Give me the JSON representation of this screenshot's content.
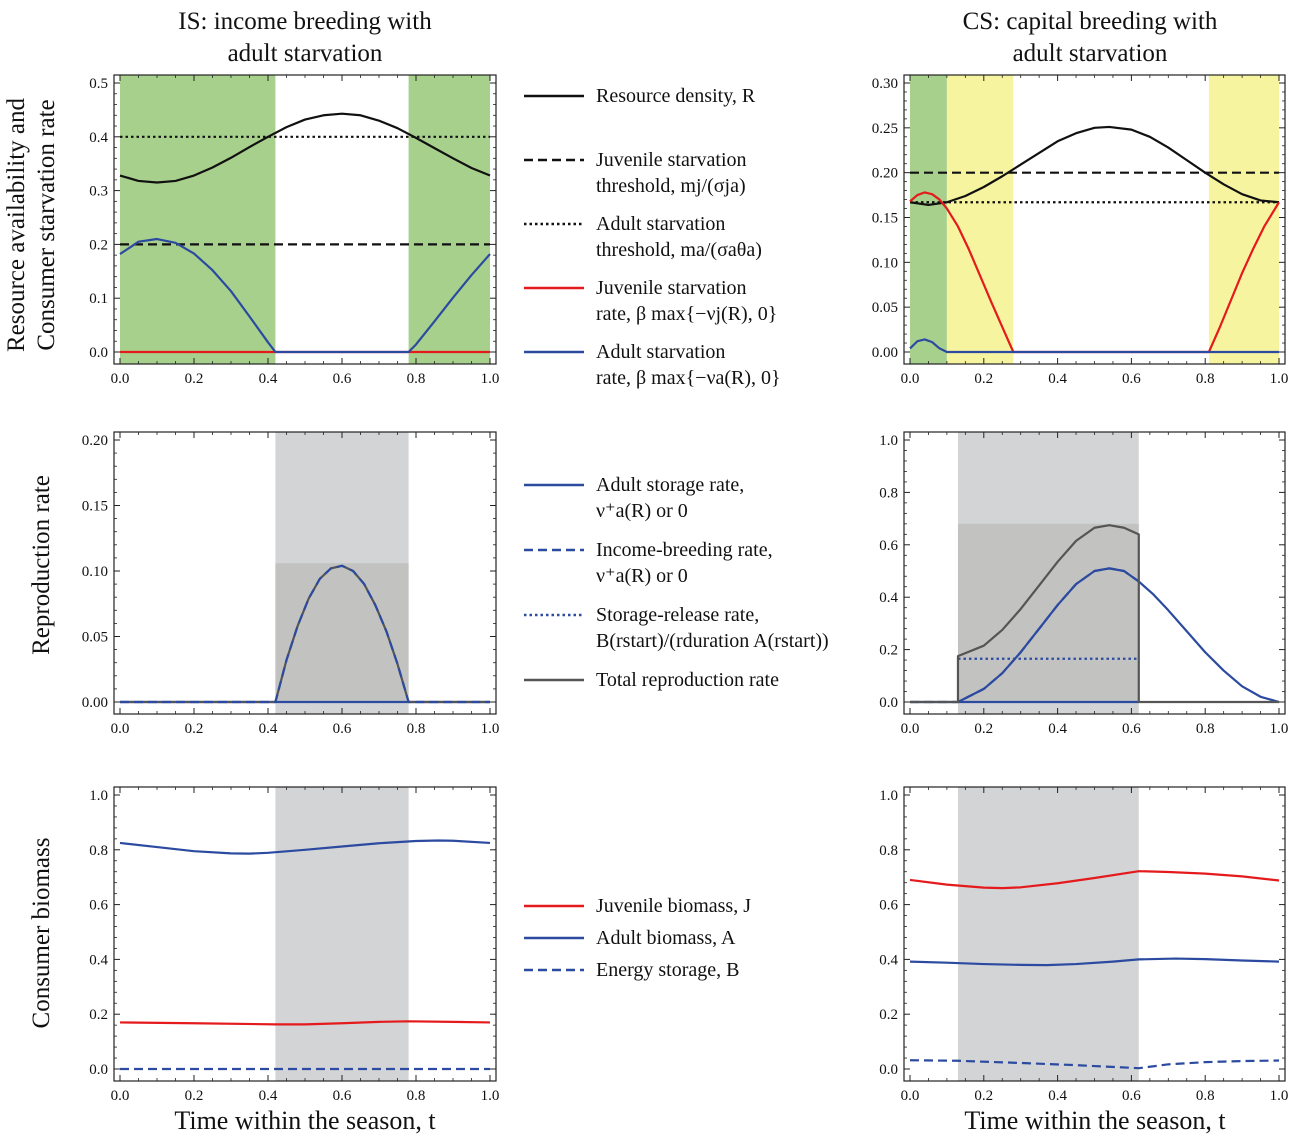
{
  "titles": {
    "left": "IS: income breeding with adult starvation",
    "left_l1": "IS: income breeding with",
    "left_l2": "adult starvation",
    "right_l1": "CS: capital breeding with",
    "right_l2": "adult starvation"
  },
  "ylabels": {
    "row1_l1": "Resource availability and",
    "row1_l2": "Consumer starvation rate",
    "row2": "Reproduction rate",
    "row3": "Consumer biomass"
  },
  "xlabels": {
    "left": "Time within the season, t",
    "right": "Time within the season, t"
  },
  "legends": {
    "row1": [
      {
        "style": "solid",
        "color": "#111111",
        "l1": "Resource density, R",
        "l2": ""
      },
      {
        "style": "dashed",
        "color": "#111111",
        "l1": "Juvenile starvation",
        "l2": "threshold, mj/(σja)"
      },
      {
        "style": "dotted",
        "color": "#111111",
        "l1": "Adult starvation",
        "l2": "threshold, ma/(σaθa)"
      },
      {
        "style": "solid",
        "color": "#e41a1c",
        "l1": "Juvenile starvation",
        "l2": "rate, β max{−νj(R), 0}"
      },
      {
        "style": "solid",
        "color": "#2b4aa0",
        "l1": "Adult starvation",
        "l2": "rate, β max{−νa(R), 0}"
      }
    ],
    "row2": [
      {
        "style": "solid",
        "color": "#2b4aa0",
        "l1": "Adult storage rate,",
        "l2": "ν⁺a(R) or 0"
      },
      {
        "style": "dashed",
        "color": "#2b4aa0",
        "l1": "Income-breeding rate,",
        "l2": "ν⁺a(R) or 0"
      },
      {
        "style": "dotted",
        "color": "#2b4aa0",
        "l1": "Storage-release rate,",
        "l2": "B(rstart)/(rduration A(rstart))"
      },
      {
        "style": "solid",
        "color": "#555555",
        "l1": "Total reproduction rate",
        "l2": ""
      }
    ],
    "row3": [
      {
        "style": "solid",
        "color": "#e41a1c",
        "l1": "Juvenile biomass, J",
        "l2": ""
      },
      {
        "style": "solid",
        "color": "#2b4aa0",
        "l1": "Adult biomass, A",
        "l2": ""
      },
      {
        "style": "dashed",
        "color": "#2b4aa0",
        "l1": "Energy storage, B",
        "l2": ""
      }
    ]
  },
  "colors": {
    "black": "#111111",
    "red": "#e41a1c",
    "blue": "#2b4aa0",
    "gray": "#555555",
    "green_band": "#a8d08d",
    "yellow_band": "#f7f4a0",
    "gray_band": "#d3d4d6"
  },
  "chart_data": [
    {
      "id": "p11",
      "type": "line",
      "xlim": [
        0,
        1
      ],
      "ylim": [
        0,
        0.5
      ],
      "xticks": [
        "0.0",
        "0.2",
        "0.4",
        "0.6",
        "0.8",
        "1.0"
      ],
      "yticks": [
        "0.0",
        "0.1",
        "0.2",
        "0.3",
        "0.4",
        "0.5"
      ],
      "bands": [
        {
          "x0": 0,
          "x1": 0.42,
          "color": "green"
        },
        {
          "x0": 0.78,
          "x1": 1,
          "color": "green"
        }
      ],
      "series": [
        {
          "color": "black",
          "style": "solid",
          "x": [
            0,
            0.05,
            0.1,
            0.15,
            0.2,
            0.25,
            0.3,
            0.35,
            0.4,
            0.45,
            0.5,
            0.55,
            0.6,
            0.65,
            0.7,
            0.75,
            0.8,
            0.85,
            0.9,
            0.95,
            1
          ],
          "y": [
            0.328,
            0.318,
            0.315,
            0.318,
            0.328,
            0.343,
            0.361,
            0.381,
            0.4,
            0.418,
            0.432,
            0.44,
            0.443,
            0.44,
            0.43,
            0.416,
            0.398,
            0.379,
            0.36,
            0.342,
            0.328
          ]
        },
        {
          "color": "black",
          "style": "dashed",
          "x": [
            0,
            1
          ],
          "y": [
            0.2,
            0.2
          ]
        },
        {
          "color": "black",
          "style": "dotted",
          "x": [
            0,
            1
          ],
          "y": [
            0.4,
            0.4
          ]
        },
        {
          "color": "red",
          "style": "solid",
          "x": [
            0,
            1
          ],
          "y": [
            0,
            0
          ]
        },
        {
          "color": "blue",
          "style": "solid",
          "x": [
            0,
            0.05,
            0.1,
            0.15,
            0.2,
            0.25,
            0.3,
            0.35,
            0.4,
            0.42,
            0.78,
            0.8,
            0.85,
            0.9,
            0.95,
            1
          ],
          "y": [
            0.182,
            0.205,
            0.21,
            0.203,
            0.183,
            0.152,
            0.113,
            0.066,
            0.018,
            0,
            0,
            0.014,
            0.057,
            0.101,
            0.143,
            0.182
          ]
        }
      ]
    },
    {
      "id": "p12",
      "type": "line",
      "xlim": [
        0,
        1
      ],
      "ylim": [
        0,
        0.3
      ],
      "xticks": [
        "0.0",
        "0.2",
        "0.4",
        "0.6",
        "0.8",
        "1.0"
      ],
      "yticks": [
        "0.00",
        "0.05",
        "0.10",
        "0.15",
        "0.20",
        "0.25",
        "0.30"
      ],
      "bands": [
        {
          "x0": 0,
          "x1": 0.1,
          "color": "green"
        },
        {
          "x0": 0.1,
          "x1": 0.28,
          "color": "yellow"
        },
        {
          "x0": 0.81,
          "x1": 1,
          "color": "yellow"
        }
      ],
      "series": [
        {
          "color": "black",
          "style": "solid",
          "x": [
            0,
            0.05,
            0.1,
            0.15,
            0.2,
            0.25,
            0.3,
            0.35,
            0.4,
            0.45,
            0.5,
            0.54,
            0.6,
            0.65,
            0.7,
            0.75,
            0.8,
            0.85,
            0.9,
            0.95,
            1
          ],
          "y": [
            0.167,
            0.164,
            0.167,
            0.174,
            0.184,
            0.196,
            0.209,
            0.222,
            0.235,
            0.244,
            0.25,
            0.251,
            0.248,
            0.24,
            0.228,
            0.214,
            0.2,
            0.187,
            0.176,
            0.169,
            0.167
          ]
        },
        {
          "color": "black",
          "style": "dashed",
          "x": [
            0,
            1
          ],
          "y": [
            0.2,
            0.2
          ]
        },
        {
          "color": "black",
          "style": "dotted",
          "x": [
            0,
            1
          ],
          "y": [
            0.167,
            0.167
          ]
        },
        {
          "color": "red",
          "style": "solid",
          "x": [
            0,
            0.02,
            0.04,
            0.06,
            0.08,
            0.1,
            0.13,
            0.16,
            0.19,
            0.22,
            0.25,
            0.28,
            0.81,
            0.84,
            0.87,
            0.9,
            0.93,
            0.96,
            1
          ],
          "y": [
            0.168,
            0.175,
            0.178,
            0.176,
            0.17,
            0.16,
            0.14,
            0.114,
            0.085,
            0.056,
            0.028,
            0,
            0,
            0.028,
            0.058,
            0.088,
            0.115,
            0.14,
            0.167
          ]
        },
        {
          "color": "blue",
          "style": "solid",
          "x": [
            0,
            0.02,
            0.04,
            0.06,
            0.08,
            0.1,
            1
          ],
          "y": [
            0.004,
            0.012,
            0.014,
            0.011,
            0.004,
            0,
            0
          ]
        }
      ]
    },
    {
      "id": "p21",
      "type": "line",
      "xlim": [
        0,
        1
      ],
      "ylim": [
        0,
        0.2
      ],
      "xticks": [
        "0.0",
        "0.2",
        "0.4",
        "0.6",
        "0.8",
        "1.0"
      ],
      "yticks": [
        "0.00",
        "0.05",
        "0.10",
        "0.15",
        "0.20"
      ],
      "bands": [
        {
          "x0": 0.42,
          "x1": 0.78,
          "color": "gray"
        }
      ],
      "fills": [
        {
          "x0": 0.42,
          "x1": 0.78,
          "y": 0.106
        }
      ],
      "series": [
        {
          "color": "blue",
          "style": "solid",
          "x": [
            0,
            1
          ],
          "y": [
            0,
            0
          ]
        },
        {
          "color": "gray",
          "style": "solid",
          "x": [
            0,
            0.42,
            0.45,
            0.48,
            0.51,
            0.54,
            0.57,
            0.6,
            0.63,
            0.66,
            0.69,
            0.72,
            0.75,
            0.78,
            1
          ],
          "y": [
            0,
            0,
            0.032,
            0.058,
            0.079,
            0.094,
            0.102,
            0.104,
            0.1,
            0.09,
            0.074,
            0.054,
            0.029,
            0,
            0
          ]
        },
        {
          "color": "blue",
          "style": "dashed",
          "x": [
            0,
            0.42,
            0.45,
            0.48,
            0.51,
            0.54,
            0.57,
            0.6,
            0.63,
            0.66,
            0.69,
            0.72,
            0.75,
            0.78,
            1
          ],
          "y": [
            0,
            0,
            0.032,
            0.058,
            0.079,
            0.094,
            0.102,
            0.104,
            0.1,
            0.09,
            0.074,
            0.054,
            0.029,
            0,
            0
          ]
        }
      ]
    },
    {
      "id": "p22",
      "type": "line",
      "xlim": [
        0,
        1
      ],
      "ylim": [
        0,
        1
      ],
      "xticks": [
        "0.0",
        "0.2",
        "0.4",
        "0.6",
        "0.8",
        "1.0"
      ],
      "yticks": [
        "0.0",
        "0.2",
        "0.4",
        "0.6",
        "0.8",
        "1.0"
      ],
      "bands": [
        {
          "x0": 0.13,
          "x1": 0.62,
          "color": "gray"
        }
      ],
      "fills": [
        {
          "x0": 0.13,
          "x1": 0.62,
          "y": 0.68
        }
      ],
      "series": [
        {
          "color": "blue",
          "style": "solid",
          "x": [
            0,
            0.13,
            0.2,
            0.25,
            0.3,
            0.35,
            0.4,
            0.45,
            0.5,
            0.54,
            0.58,
            0.62,
            0.66,
            0.7,
            0.75,
            0.8,
            0.85,
            0.9,
            0.95,
            1
          ],
          "y": [
            0,
            0,
            0.05,
            0.11,
            0.19,
            0.28,
            0.37,
            0.45,
            0.5,
            0.51,
            0.5,
            0.46,
            0.41,
            0.35,
            0.27,
            0.19,
            0.12,
            0.06,
            0.02,
            0
          ]
        },
        {
          "color": "blue",
          "style": "dashed",
          "x": [
            0,
            0.13,
            0.2,
            0.25,
            0.3,
            0.35,
            0.4,
            0.45,
            0.5,
            0.54,
            0.58,
            0.62
          ],
          "y": [
            0,
            0,
            0.05,
            0.11,
            0.19,
            0.28,
            0.37,
            0.45,
            0.5,
            0.51,
            0.5,
            0.46
          ]
        },
        {
          "color": "blue",
          "style": "dotted",
          "x": [
            0.13,
            0.62
          ],
          "y": [
            0.165,
            0.165
          ]
        },
        {
          "color": "blue",
          "style": "solid",
          "x": [
            0.13,
            0.62
          ],
          "y": [
            0,
            0
          ]
        },
        {
          "color": "gray",
          "style": "solid",
          "x": [
            0,
            0.13,
            0.13,
            0.2,
            0.25,
            0.3,
            0.35,
            0.4,
            0.45,
            0.5,
            0.54,
            0.58,
            0.62,
            0.62,
            1
          ],
          "y": [
            0,
            0,
            0.175,
            0.215,
            0.275,
            0.355,
            0.445,
            0.535,
            0.615,
            0.665,
            0.675,
            0.665,
            0.64,
            0,
            0
          ]
        }
      ]
    },
    {
      "id": "p31",
      "type": "line",
      "xlim": [
        0,
        1
      ],
      "ylim": [
        0,
        1
      ],
      "xticks": [
        "0.0",
        "0.2",
        "0.4",
        "0.6",
        "0.8",
        "1.0"
      ],
      "yticks": [
        "0.0",
        "0.2",
        "0.4",
        "0.6",
        "0.8",
        "1.0"
      ],
      "bands": [
        {
          "x0": 0.42,
          "x1": 0.78,
          "color": "gray"
        }
      ],
      "series": [
        {
          "color": "blue",
          "style": "solid",
          "x": [
            0,
            0.1,
            0.2,
            0.3,
            0.35,
            0.4,
            0.5,
            0.6,
            0.7,
            0.8,
            0.86,
            0.9,
            1
          ],
          "y": [
            0.825,
            0.81,
            0.795,
            0.787,
            0.786,
            0.789,
            0.8,
            0.812,
            0.824,
            0.832,
            0.834,
            0.833,
            0.825
          ]
        },
        {
          "color": "red",
          "style": "solid",
          "x": [
            0,
            0.2,
            0.42,
            0.5,
            0.6,
            0.7,
            0.78,
            0.9,
            1
          ],
          "y": [
            0.17,
            0.167,
            0.163,
            0.163,
            0.167,
            0.172,
            0.174,
            0.172,
            0.17
          ]
        },
        {
          "color": "blue",
          "style": "dashed",
          "x": [
            0,
            1
          ],
          "y": [
            0,
            0
          ]
        }
      ]
    },
    {
      "id": "p32",
      "type": "line",
      "xlim": [
        0,
        1
      ],
      "ylim": [
        0,
        1
      ],
      "xticks": [
        "0.0",
        "0.2",
        "0.4",
        "0.6",
        "0.8",
        "1.0"
      ],
      "yticks": [
        "0.0",
        "0.2",
        "0.4",
        "0.6",
        "0.8",
        "1.0"
      ],
      "bands": [
        {
          "x0": 0.13,
          "x1": 0.62,
          "color": "gray"
        }
      ],
      "series": [
        {
          "color": "red",
          "style": "solid",
          "x": [
            0,
            0.1,
            0.2,
            0.25,
            0.3,
            0.4,
            0.5,
            0.62,
            0.7,
            0.8,
            0.9,
            1
          ],
          "y": [
            0.69,
            0.673,
            0.662,
            0.66,
            0.663,
            0.678,
            0.697,
            0.722,
            0.719,
            0.713,
            0.703,
            0.688
          ]
        },
        {
          "color": "blue",
          "style": "solid",
          "x": [
            0,
            0.1,
            0.2,
            0.3,
            0.37,
            0.45,
            0.55,
            0.62,
            0.72,
            0.8,
            0.9,
            1
          ],
          "y": [
            0.392,
            0.388,
            0.383,
            0.38,
            0.379,
            0.383,
            0.392,
            0.4,
            0.403,
            0.401,
            0.396,
            0.392
          ]
        },
        {
          "color": "blue",
          "style": "dashed",
          "x": [
            0,
            0.13,
            0.3,
            0.45,
            0.62,
            0.7,
            0.8,
            0.9,
            1
          ],
          "y": [
            0.032,
            0.03,
            0.022,
            0.014,
            0.003,
            0.017,
            0.025,
            0.029,
            0.031
          ]
        }
      ]
    }
  ]
}
